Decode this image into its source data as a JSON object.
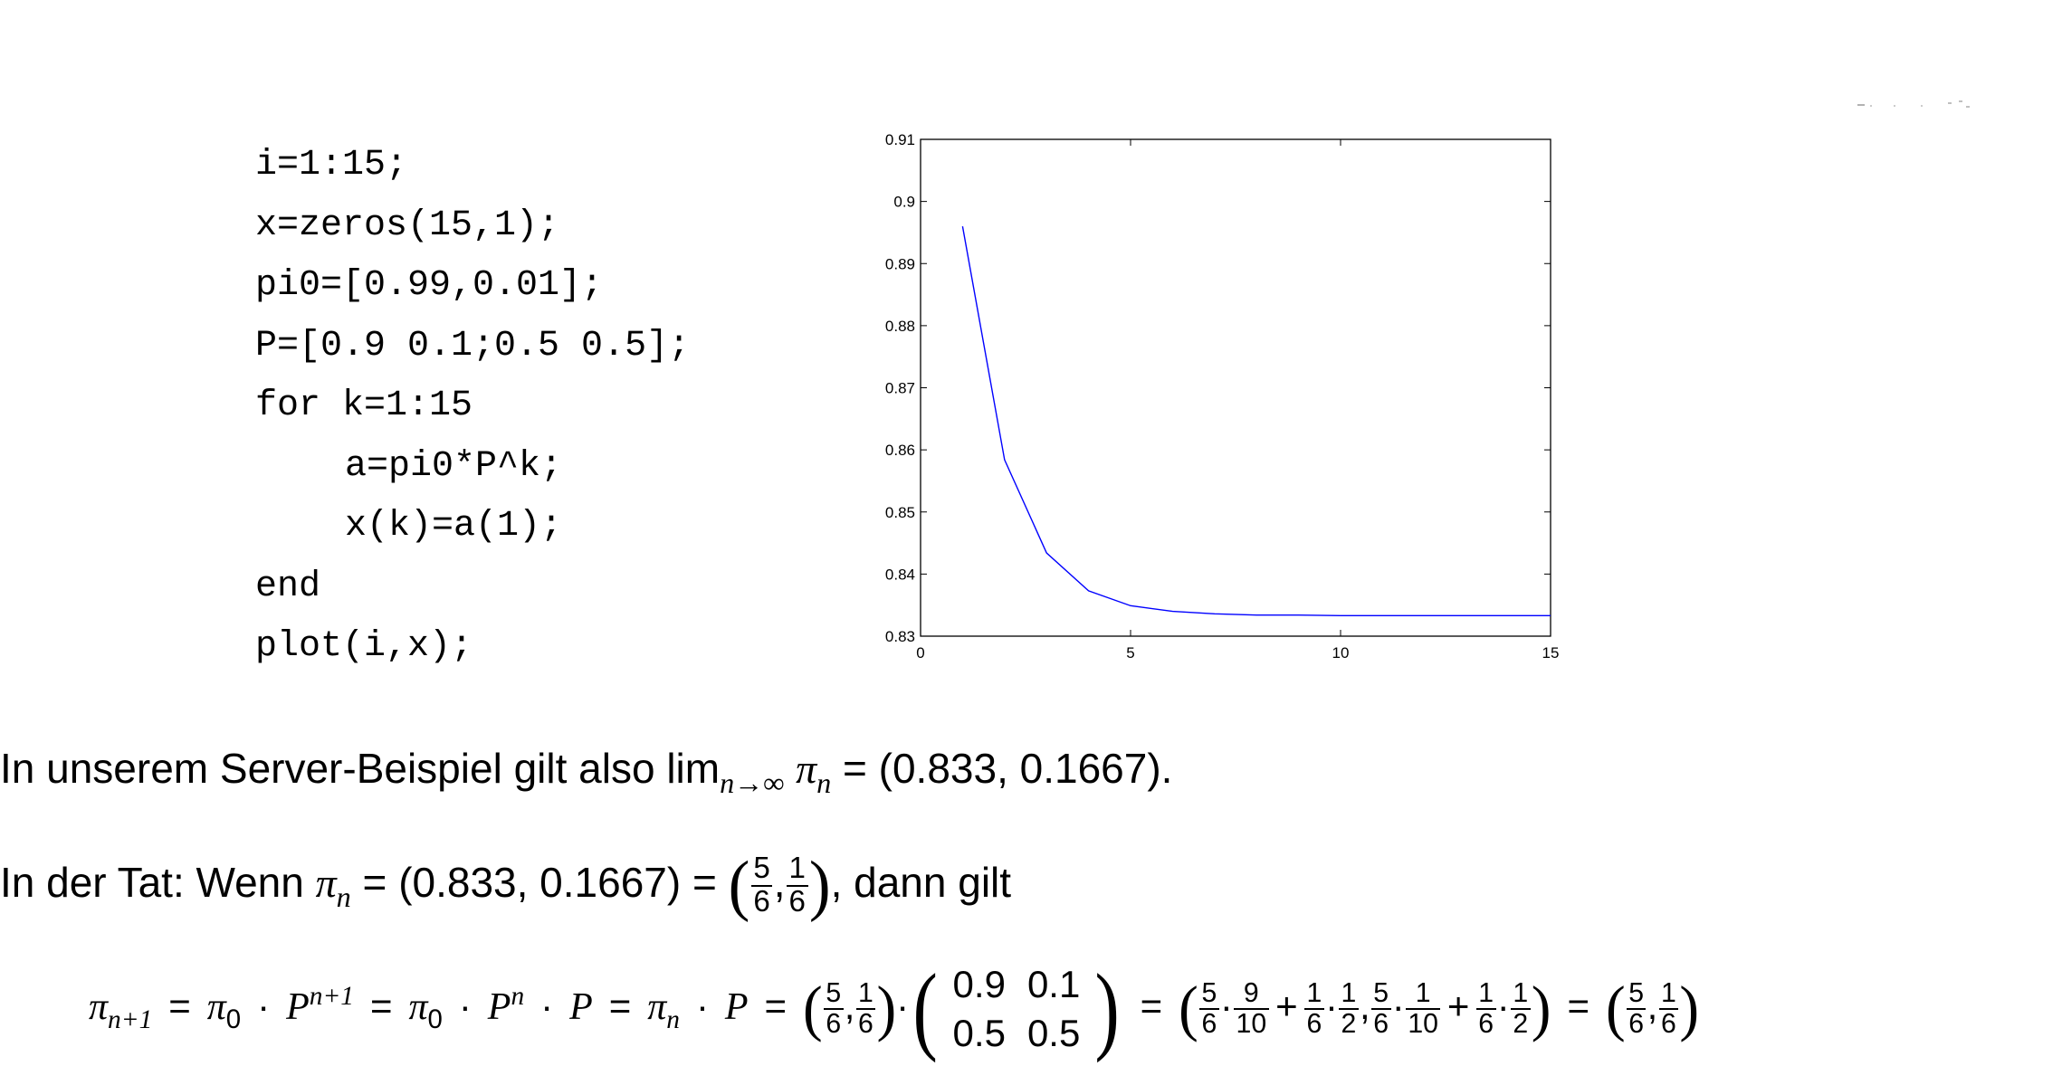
{
  "code_lines": [
    "i=1:15;",
    "x=zeros(15,1);",
    "pi0=[0.99,0.01];",
    "P=[0.9 0.1;0.5 0.5];",
    "for k=1:15",
    "a=pi0*P^k;",
    "x(k)=a(1);",
    "end",
    "plot(i,x);"
  ],
  "chart_data": {
    "type": "line",
    "x": [
      1,
      2,
      3,
      4,
      5,
      6,
      7,
      8,
      9,
      10,
      11,
      12,
      13,
      14,
      15
    ],
    "series": [
      {
        "values": [
          0.896,
          0.8584,
          0.8434,
          0.8373,
          0.8349,
          0.834,
          0.8336,
          0.8334,
          0.8334,
          0.8333,
          0.8333,
          0.8333,
          0.8333,
          0.8333,
          0.8333
        ],
        "color": "#0000ff"
      }
    ],
    "xlim": [
      0,
      15
    ],
    "ylim": [
      0.83,
      0.91
    ],
    "xticks": [
      "0",
      "5",
      "10",
      "15"
    ],
    "yticks": [
      "0.83",
      "0.84",
      "0.85",
      "0.86",
      "0.87",
      "0.88",
      "0.89",
      "0.9",
      "0.91"
    ],
    "grid": false,
    "title": "",
    "xlabel": "",
    "ylabel": ""
  },
  "text": {
    "line1_a": "In unserem Server-Beispiel gilt also lim",
    "line1_sub": "n→∞",
    "line1_pi": "π",
    "line1_n": "n",
    "line1_b": "= (0.833, 0.1667).",
    "line2_a": "In der Tat: Wenn",
    "line2_pi": "π",
    "line2_n": "n",
    "line2_b": "= (0.833, 0.1667) =",
    "line2_c": ", dann gilt"
  },
  "fractions": {
    "five": "5",
    "one": "1",
    "six": "6",
    "nine": "9",
    "ten": "10",
    "two": "2"
  },
  "equation": {
    "pi": "π",
    "P": "P",
    "n": "n",
    "n1": "n+1",
    "zero": "0",
    "nplus1": "n+1",
    "matrix": [
      [
        "0.9",
        "0.1"
      ],
      [
        "0.5",
        "0.5"
      ]
    ]
  }
}
